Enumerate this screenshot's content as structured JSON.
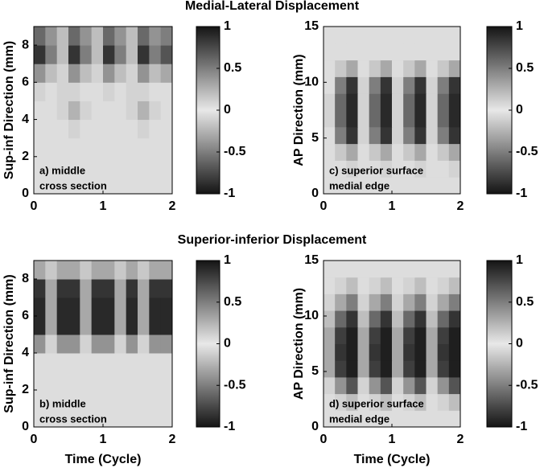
{
  "chart_data": [
    {
      "type": "heatmap",
      "title": "Medial-Lateral Displacement",
      "ylabel": "Sup-inf Direction (mm)",
      "annotation": [
        "a) middle",
        "cross section"
      ],
      "xlim": [
        0,
        2
      ],
      "xticks": [
        0,
        1,
        2
      ],
      "ylim": [
        0,
        9
      ],
      "yticks": [
        0,
        2,
        4,
        6,
        8
      ],
      "clim": [
        -1,
        1
      ],
      "cticks": [
        1,
        0.5,
        0,
        -0.5,
        -1
      ],
      "z": [
        [
          0.05,
          0.05,
          0.05,
          0.05,
          0.05,
          0.05,
          0.05,
          0.05,
          0.05,
          0.05,
          0.05,
          0.05
        ],
        [
          0.05,
          0.05,
          0.05,
          0.05,
          0.05,
          0.05,
          0.05,
          0.05,
          0.05,
          0.05,
          0.05,
          0.05
        ],
        [
          0.05,
          0.05,
          0.05,
          0.05,
          0.05,
          0.05,
          0.05,
          0.05,
          0.05,
          0.05,
          0.05,
          0.05
        ],
        [
          0.05,
          0.05,
          0.05,
          0.1,
          0.05,
          0.05,
          0.05,
          0.05,
          0.05,
          0.1,
          0.05,
          0.05
        ],
        [
          0.05,
          0.05,
          0.1,
          -0.25,
          0.1,
          0.05,
          0.05,
          0.05,
          0.1,
          -0.25,
          0.1,
          0.05
        ],
        [
          0.1,
          0.05,
          0.1,
          0.1,
          0.05,
          0.05,
          0.1,
          0.05,
          0.1,
          0.1,
          0.05,
          0.05
        ],
        [
          0.4,
          0.2,
          0.1,
          0.4,
          0.2,
          0.1,
          0.4,
          0.2,
          0.1,
          0.4,
          0.2,
          0.3
        ],
        [
          0.85,
          0.5,
          0.2,
          0.85,
          0.5,
          0.2,
          0.85,
          0.5,
          0.2,
          0.85,
          0.5,
          0.7
        ],
        [
          0.6,
          0.4,
          0.2,
          0.6,
          0.4,
          0.2,
          0.6,
          0.4,
          0.2,
          0.6,
          0.4,
          0.5
        ]
      ]
    },
    {
      "type": "heatmap",
      "ylabel": "AP Direction (mm)",
      "annotation": [
        "c) superior surface",
        "medial edge"
      ],
      "xlim": [
        0,
        2
      ],
      "xticks": [
        0,
        1,
        2
      ],
      "ylim": [
        0,
        15
      ],
      "yticks": [
        0,
        5,
        10,
        15
      ],
      "clim": [
        -1,
        1
      ],
      "cticks": [
        1,
        0.5,
        0,
        -0.5,
        -1
      ],
      "z": [
        [
          0.05,
          0.05,
          0.05,
          0.05,
          0.05,
          0.05,
          0.05,
          0.05,
          0.05,
          0.05,
          0.05,
          0.05
        ],
        [
          0.05,
          0.05,
          0.1,
          0.05,
          0.05,
          0.1,
          0.05,
          0.05,
          0.1,
          0.05,
          0.05,
          0.1
        ],
        [
          0.05,
          0.15,
          0.3,
          0.05,
          0.15,
          0.3,
          0.05,
          0.15,
          0.3,
          0.05,
          0.15,
          0.3
        ],
        [
          0.05,
          0.5,
          0.85,
          0.1,
          0.5,
          0.85,
          0.1,
          0.5,
          0.85,
          0.1,
          0.5,
          0.85
        ],
        [
          0.1,
          0.6,
          0.9,
          0.1,
          0.6,
          0.9,
          0.1,
          0.6,
          0.9,
          0.1,
          0.6,
          0.9
        ],
        [
          0.1,
          0.6,
          0.9,
          0.1,
          0.6,
          0.9,
          0.1,
          0.6,
          0.9,
          0.1,
          0.6,
          0.9
        ],
        [
          0.05,
          0.5,
          0.85,
          0.1,
          0.5,
          0.85,
          0.1,
          0.5,
          0.85,
          0.1,
          0.5,
          0.85
        ],
        [
          0.05,
          0.15,
          0.3,
          0.05,
          0.15,
          0.3,
          0.05,
          0.15,
          0.3,
          0.05,
          0.15,
          0.3
        ],
        [
          0.05,
          0.05,
          0.05,
          0.05,
          0.05,
          0.05,
          0.05,
          0.05,
          0.05,
          0.05,
          0.05,
          0.05
        ],
        [
          0.05,
          0.05,
          0.05,
          0.05,
          0.05,
          0.05,
          0.05,
          0.05,
          0.05,
          0.05,
          0.05,
          0.05
        ]
      ]
    },
    {
      "type": "heatmap",
      "title": "Superior-inferior Displacement",
      "ylabel": "Sup-inf Direction (mm)",
      "xlabel": "Time (Cycle)",
      "annotation": [
        "b) middle",
        "cross section"
      ],
      "xlim": [
        0,
        2
      ],
      "xticks": [
        0,
        1,
        2
      ],
      "ylim": [
        0,
        9
      ],
      "yticks": [
        0,
        2,
        4,
        6,
        8
      ],
      "clim": [
        -1,
        1
      ],
      "cticks": [
        1,
        0.5,
        0,
        -0.5,
        -1
      ],
      "z": [
        [
          0.05,
          0.05,
          0.05,
          0.05,
          0.05,
          0.05,
          0.05,
          0.05,
          0.05,
          0.05,
          0.05,
          0.05
        ],
        [
          0.05,
          0.05,
          0.05,
          0.05,
          0.05,
          0.05,
          0.05,
          0.05,
          0.05,
          0.05,
          0.05,
          0.05
        ],
        [
          0.05,
          0.05,
          0.05,
          0.05,
          0.05,
          0.05,
          0.05,
          0.05,
          0.05,
          0.05,
          0.05,
          0.05
        ],
        [
          0.05,
          0.05,
          0.05,
          0.05,
          0.05,
          0.05,
          0.05,
          0.05,
          0.05,
          0.05,
          0.05,
          0.05
        ],
        [
          0.4,
          0.1,
          0.4,
          0.4,
          0.1,
          0.4,
          0.4,
          0.1,
          0.4,
          0.1,
          0.4,
          0.4
        ],
        [
          0.9,
          0.3,
          0.9,
          0.9,
          0.3,
          0.9,
          0.9,
          0.3,
          0.9,
          0.3,
          0.9,
          0.9
        ],
        [
          0.9,
          0.3,
          0.9,
          0.9,
          0.3,
          0.9,
          0.9,
          0.3,
          0.9,
          0.3,
          0.9,
          0.9
        ],
        [
          0.85,
          0.3,
          0.85,
          0.85,
          0.3,
          0.85,
          0.85,
          0.3,
          0.85,
          0.3,
          0.85,
          0.85
        ],
        [
          0.3,
          0.15,
          0.3,
          0.3,
          0.15,
          0.3,
          0.3,
          0.15,
          0.3,
          0.15,
          0.3,
          0.3
        ]
      ]
    },
    {
      "type": "heatmap",
      "ylabel": "AP Direction (mm)",
      "xlabel": "Time (Cycle)",
      "annotation": [
        "d) superior surface",
        "medial edge"
      ],
      "xlim": [
        0,
        2
      ],
      "xticks": [
        0,
        1,
        2
      ],
      "ylim": [
        0,
        15
      ],
      "yticks": [
        0,
        5,
        10,
        15
      ],
      "clim": [
        -1,
        1
      ],
      "cticks": [
        1,
        0.5,
        0,
        -0.5,
        -1
      ],
      "z": [
        [
          0.05,
          0.05,
          0.05,
          0.05,
          0.05,
          0.05,
          0.05,
          0.05,
          0.05,
          0.05,
          0.05,
          0.05
        ],
        [
          0.05,
          0.1,
          0.2,
          0.05,
          0.1,
          0.2,
          0.05,
          0.1,
          0.2,
          0.05,
          0.1,
          0.2
        ],
        [
          0.1,
          0.4,
          0.7,
          0.1,
          0.4,
          0.7,
          0.1,
          0.4,
          0.7,
          0.1,
          0.4,
          0.7
        ],
        [
          0.3,
          0.8,
          0.95,
          0.3,
          0.8,
          0.95,
          0.3,
          0.8,
          0.95,
          0.3,
          0.8,
          0.95
        ],
        [
          0.3,
          0.85,
          0.95,
          0.3,
          0.85,
          0.95,
          0.3,
          0.85,
          0.95,
          0.3,
          0.85,
          0.95
        ],
        [
          0.3,
          0.8,
          0.95,
          0.3,
          0.8,
          0.95,
          0.3,
          0.8,
          0.95,
          0.3,
          0.8,
          0.95
        ],
        [
          0.2,
          0.6,
          0.85,
          0.2,
          0.6,
          0.85,
          0.2,
          0.6,
          0.85,
          0.2,
          0.6,
          0.85
        ],
        [
          0.1,
          0.3,
          0.5,
          0.1,
          0.3,
          0.5,
          0.1,
          0.3,
          0.5,
          0.1,
          0.3,
          0.5
        ],
        [
          0.05,
          0.1,
          0.2,
          0.05,
          0.1,
          0.2,
          0.05,
          0.1,
          0.2,
          0.05,
          0.1,
          0.2
        ],
        [
          0.05,
          0.05,
          0.05,
          0.05,
          0.05,
          0.05,
          0.05,
          0.05,
          0.05,
          0.05,
          0.05,
          0.05
        ]
      ]
    }
  ]
}
